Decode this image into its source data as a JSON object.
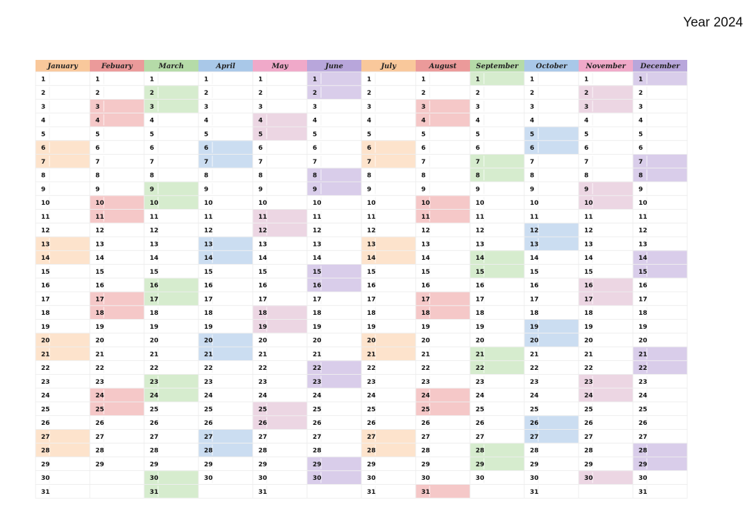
{
  "header": {
    "title": "Year 2024"
  },
  "months": [
    {
      "name": "January",
      "color": "#f9c89b",
      "light": "#fde3cc",
      "days": [
        1,
        2,
        3,
        4,
        5,
        6,
        7,
        8,
        9,
        10,
        11,
        12,
        13,
        14,
        15,
        16,
        17,
        18,
        19,
        20,
        21,
        22,
        23,
        24,
        25,
        26,
        27,
        28,
        29,
        30,
        31
      ],
      "weekend": [
        6,
        7,
        13,
        14,
        20,
        21,
        27,
        28
      ]
    },
    {
      "name": "Febuary",
      "color": "#eb9a9a",
      "light": "#f5c8c8",
      "days": [
        1,
        2,
        3,
        4,
        5,
        6,
        7,
        8,
        9,
        10,
        11,
        12,
        13,
        14,
        15,
        16,
        17,
        18,
        19,
        20,
        21,
        22,
        23,
        24,
        25,
        26,
        27,
        28,
        29
      ],
      "weekend": [
        3,
        4,
        10,
        11,
        17,
        18,
        24,
        25
      ]
    },
    {
      "name": "March",
      "color": "#b5dba8",
      "light": "#d6ecce",
      "days": [
        1,
        2,
        3,
        4,
        5,
        6,
        7,
        8,
        9,
        10,
        11,
        12,
        13,
        14,
        15,
        16,
        17,
        18,
        19,
        20,
        21,
        22,
        23,
        24,
        25,
        26,
        27,
        28,
        29,
        30,
        31
      ],
      "weekend": [
        2,
        3,
        9,
        10,
        16,
        17,
        23,
        24,
        30,
        31
      ]
    },
    {
      "name": "April",
      "color": "#a9c8e8",
      "light": "#cbddf1",
      "days": [
        1,
        2,
        3,
        4,
        5,
        6,
        7,
        8,
        9,
        10,
        11,
        12,
        13,
        14,
        15,
        16,
        17,
        18,
        19,
        20,
        21,
        22,
        23,
        24,
        25,
        26,
        27,
        28,
        29,
        30
      ],
      "weekend": [
        6,
        7,
        13,
        14,
        20,
        21,
        27,
        28
      ]
    },
    {
      "name": "May",
      "color": "#f0a9c9",
      "light": "#ecd6e3",
      "days": [
        1,
        2,
        3,
        4,
        5,
        6,
        7,
        8,
        9,
        10,
        11,
        12,
        13,
        14,
        15,
        16,
        17,
        18,
        19,
        20,
        21,
        22,
        23,
        24,
        25,
        26,
        27,
        28,
        29,
        30,
        31
      ],
      "weekend": [
        4,
        5,
        11,
        12,
        18,
        19,
        25,
        26
      ]
    },
    {
      "name": "June",
      "color": "#b8a6db",
      "light": "#d9cdea",
      "days": [
        1,
        2,
        3,
        4,
        5,
        6,
        7,
        8,
        9,
        10,
        11,
        12,
        13,
        14,
        15,
        16,
        17,
        18,
        19,
        20,
        21,
        22,
        23,
        24,
        25,
        26,
        27,
        28,
        29,
        30
      ],
      "weekend": [
        1,
        2,
        8,
        9,
        15,
        16,
        22,
        23,
        29,
        30
      ]
    },
    {
      "name": "July",
      "color": "#f9c89b",
      "light": "#fde3cc",
      "days": [
        1,
        2,
        3,
        4,
        5,
        6,
        7,
        8,
        9,
        10,
        11,
        12,
        13,
        14,
        15,
        16,
        17,
        18,
        19,
        20,
        21,
        22,
        23,
        24,
        25,
        26,
        27,
        28,
        29,
        30,
        31
      ],
      "weekend": [
        6,
        7,
        13,
        14,
        20,
        21,
        27,
        28
      ]
    },
    {
      "name": "August",
      "color": "#eb9a9a",
      "light": "#f5c8c8",
      "days": [
        1,
        2,
        3,
        4,
        5,
        6,
        7,
        8,
        9,
        10,
        11,
        12,
        13,
        14,
        15,
        16,
        17,
        18,
        19,
        20,
        21,
        22,
        23,
        24,
        25,
        26,
        27,
        28,
        29,
        30,
        31
      ],
      "weekend": [
        3,
        4,
        10,
        11,
        17,
        18,
        24,
        25,
        31
      ]
    },
    {
      "name": "September",
      "color": "#b5dba8",
      "light": "#d6ecce",
      "days": [
        1,
        2,
        3,
        4,
        5,
        6,
        7,
        8,
        9,
        10,
        11,
        12,
        13,
        14,
        15,
        16,
        17,
        18,
        19,
        20,
        21,
        22,
        23,
        24,
        25,
        26,
        27,
        28,
        29,
        30
      ],
      "weekend": [
        1,
        7,
        8,
        14,
        15,
        21,
        22,
        28,
        29
      ]
    },
    {
      "name": "October",
      "color": "#a9c8e8",
      "light": "#cbddf1",
      "days": [
        1,
        2,
        3,
        4,
        5,
        6,
        7,
        8,
        9,
        10,
        11,
        12,
        13,
        14,
        15,
        16,
        17,
        18,
        19,
        20,
        21,
        22,
        23,
        24,
        25,
        26,
        27,
        28,
        29,
        30,
        31
      ],
      "weekend": [
        5,
        6,
        12,
        13,
        19,
        20,
        26,
        27
      ]
    },
    {
      "name": "November",
      "color": "#f0a9c9",
      "light": "#ecd6e3",
      "days": [
        1,
        2,
        3,
        4,
        5,
        6,
        7,
        8,
        9,
        10,
        11,
        12,
        13,
        14,
        15,
        16,
        17,
        18,
        19,
        20,
        21,
        22,
        23,
        24,
        25,
        26,
        27,
        28,
        29,
        30
      ],
      "weekend": [
        2,
        3,
        9,
        10,
        16,
        17,
        23,
        24,
        30
      ]
    },
    {
      "name": "December",
      "color": "#b8a6db",
      "light": "#d9cdea",
      "days": [
        1,
        2,
        3,
        4,
        5,
        6,
        7,
        8,
        9,
        10,
        11,
        12,
        13,
        14,
        15,
        16,
        17,
        18,
        19,
        20,
        21,
        22,
        23,
        24,
        25,
        26,
        27,
        28,
        29,
        30,
        31
      ],
      "weekend": [
        1,
        7,
        8,
        14,
        15,
        21,
        22,
        28,
        29
      ]
    }
  ]
}
